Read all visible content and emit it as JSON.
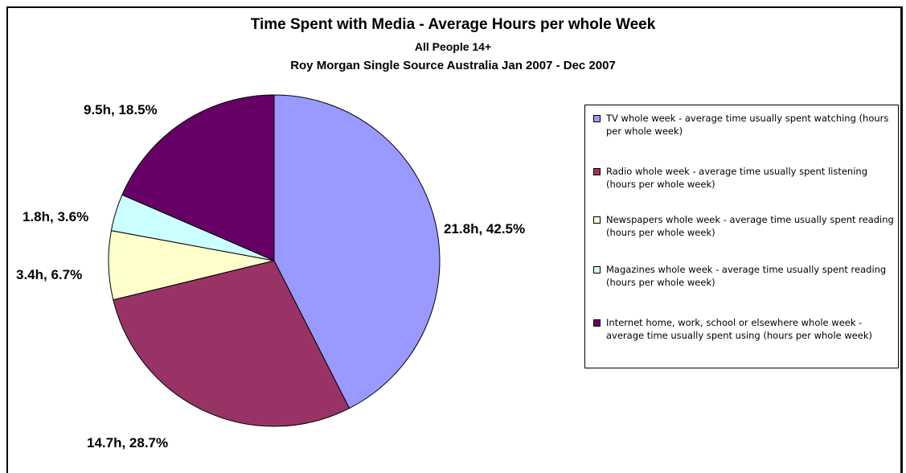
{
  "chart_data": {
    "type": "pie",
    "title": "Time Spent with Media - Average Hours per whole Week",
    "subtitle1": "All People 14+",
    "subtitle2": "Roy Morgan Single Source Australia Jan 2007 - Dec 2007",
    "slices": [
      {
        "name": "TV whole week - average time usually spent watching (hours per whole week)",
        "hours": 21.8,
        "percent": 42.5,
        "label": "21.8h, 42.5%",
        "color": "#9999ff"
      },
      {
        "name": "Radio whole week - average time usually spent listening (hours per whole week)",
        "hours": 14.7,
        "percent": 28.7,
        "label": "14.7h, 28.7%",
        "color": "#993366"
      },
      {
        "name": "Newspapers whole week - average time usually spent reading (hours per whole week)",
        "hours": 3.4,
        "percent": 6.7,
        "label": "3.4h, 6.7%",
        "color": "#ffffcc"
      },
      {
        "name": "Magazines whole week - average time usually spent reading (hours per whole week)",
        "hours": 1.8,
        "percent": 3.6,
        "label": "1.8h, 3.6%",
        "color": "#ccffff"
      },
      {
        "name": "Internet home, work, school or elsewhere whole week - average time usually spent using (hours per whole week)",
        "hours": 9.5,
        "percent": 18.5,
        "label": "9.5h, 18.5%",
        "color": "#660066"
      }
    ],
    "legend_position": "right"
  }
}
